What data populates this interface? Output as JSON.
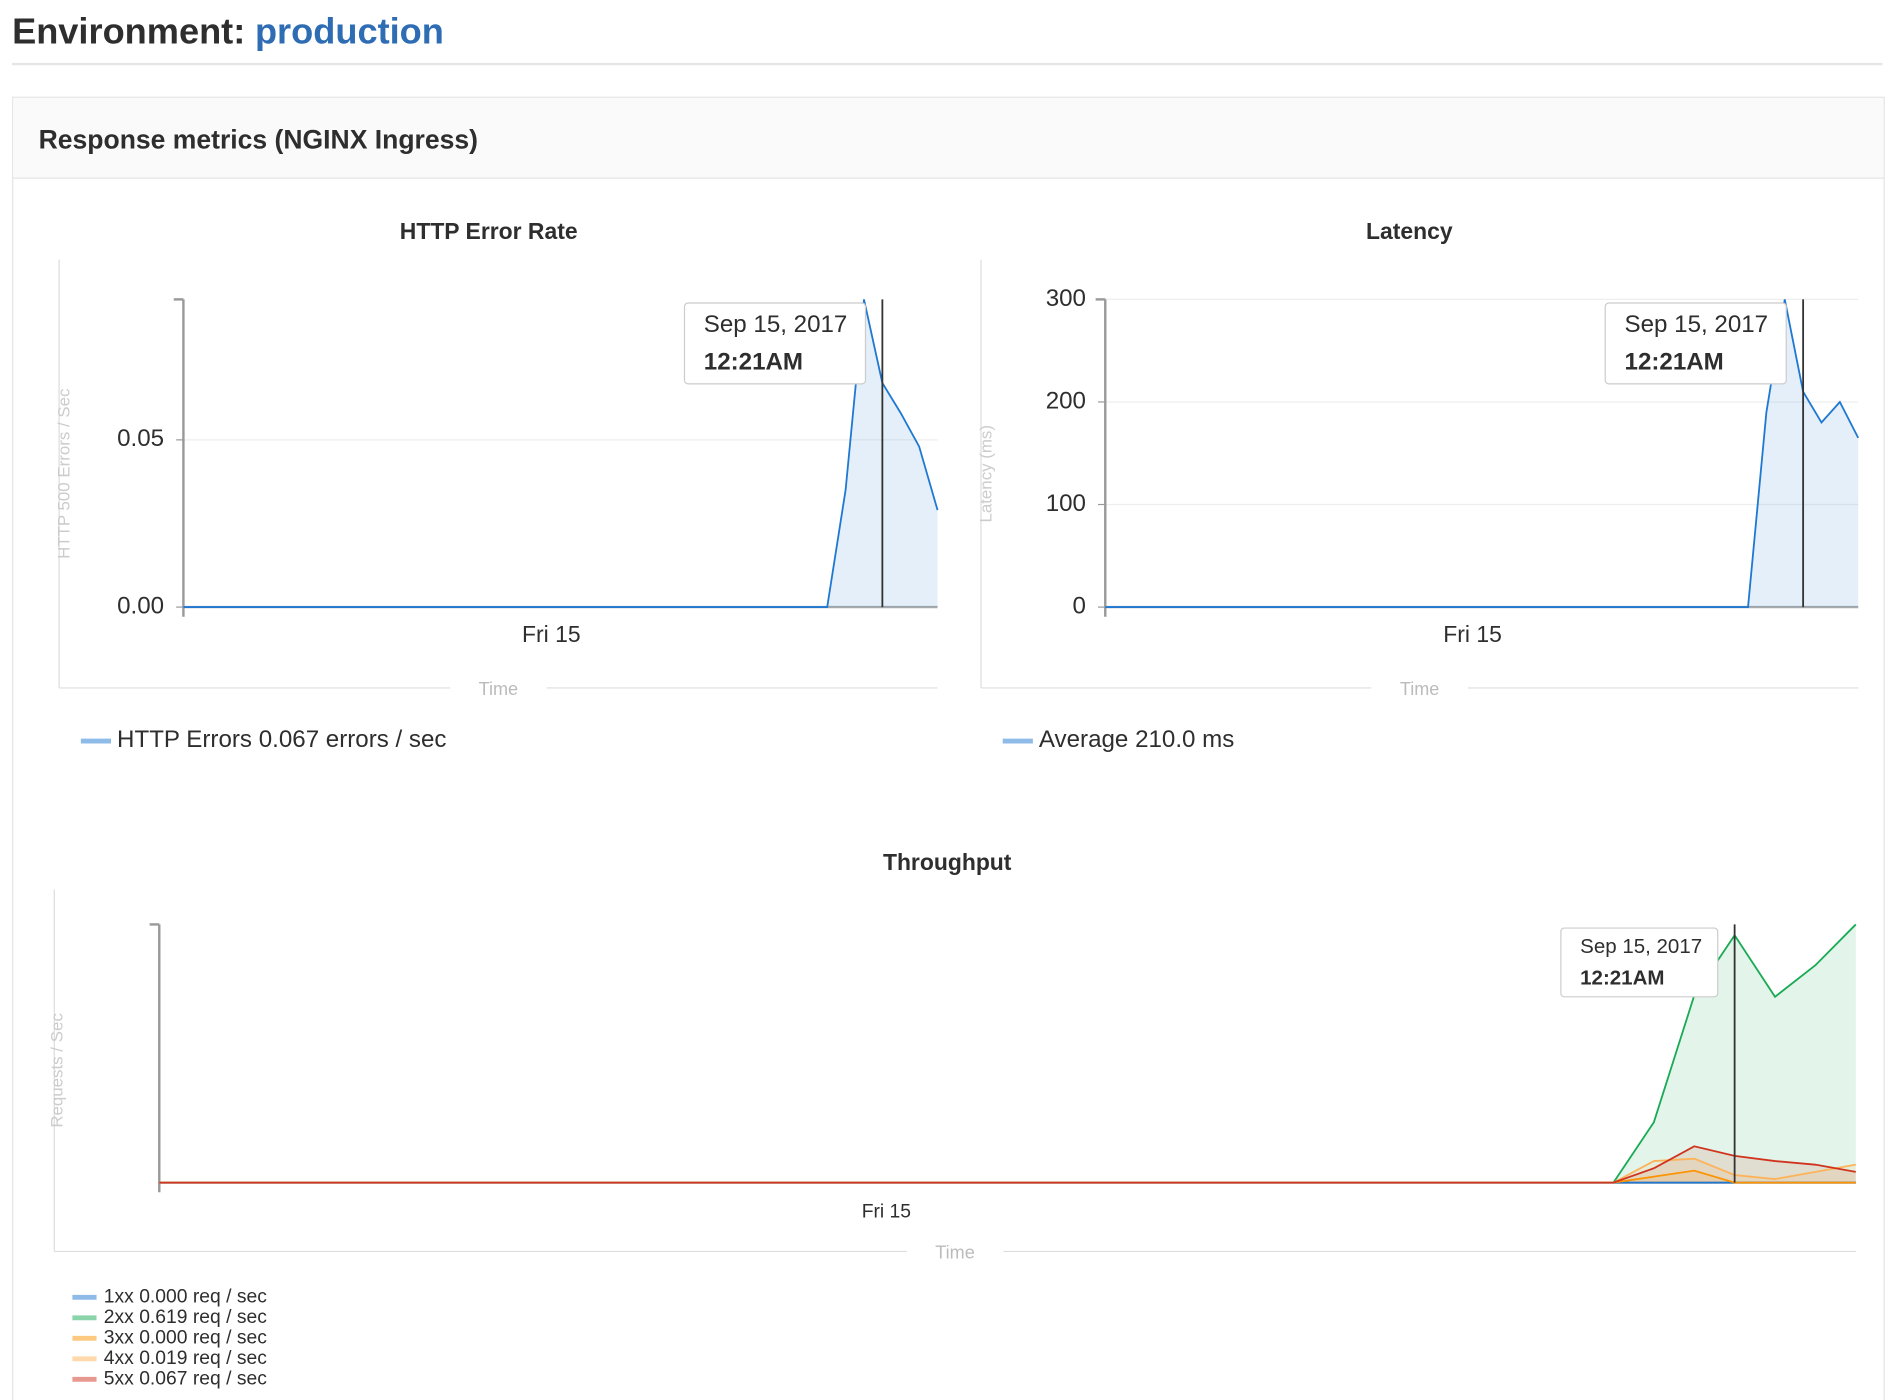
{
  "header": {
    "label": "Environment:",
    "environment": "production"
  },
  "panel": {
    "title": "Response metrics (NGINX Ingress)"
  },
  "chart_data": [
    {
      "type": "area",
      "title": "HTTP Error Rate",
      "y_label": "HTTP 500 Errors / Sec",
      "x_label": "Time",
      "categories": [
        null,
        null,
        null,
        null,
        null,
        null,
        null,
        null,
        null,
        null,
        null,
        null,
        null,
        null,
        null,
        null,
        null,
        null,
        null,
        null,
        "Fri 15",
        null,
        null,
        null,
        null,
        null,
        null,
        null,
        null,
        null,
        null,
        null,
        null,
        null,
        null,
        null,
        null,
        null,
        null,
        null,
        null,
        null
      ],
      "series": [
        {
          "name": "HTTP Errors",
          "legend_value": "0.067 errors / sec",
          "color": "#1f78d1",
          "values": [
            0,
            0,
            0,
            0,
            0,
            0,
            0,
            0,
            0,
            0,
            0,
            0,
            0,
            0,
            0,
            0,
            0,
            0,
            0,
            0,
            0,
            0,
            0,
            0,
            0,
            0,
            0,
            0,
            0,
            0,
            0,
            0,
            0,
            0,
            0,
            0,
            0.035,
            0.092,
            0.067,
            0.058,
            0.048,
            0.029
          ]
        }
      ],
      "ylim": [
        0,
        0.092
      ],
      "yticks": [
        {
          "value": 0,
          "label": "0.00"
        },
        {
          "value": 0.05,
          "label": "0.05"
        }
      ],
      "grid": true,
      "tooltip": {
        "date": "Sep 15, 2017",
        "time": "12:21AM"
      }
    },
    {
      "type": "area",
      "title": "Latency",
      "y_label": "Latency (ms)",
      "x_label": "Time",
      "categories": [
        null,
        null,
        null,
        null,
        null,
        null,
        null,
        null,
        null,
        null,
        null,
        null,
        null,
        null,
        null,
        null,
        null,
        null,
        null,
        null,
        "Fri 15",
        null,
        null,
        null,
        null,
        null,
        null,
        null,
        null,
        null,
        null,
        null,
        null,
        null,
        null,
        null,
        null,
        null,
        null,
        null,
        null,
        null
      ],
      "series": [
        {
          "name": "Average",
          "legend_value": "210.0 ms",
          "color": "#1f78d1",
          "values": [
            0,
            0,
            0,
            0,
            0,
            0,
            0,
            0,
            0,
            0,
            0,
            0,
            0,
            0,
            0,
            0,
            0,
            0,
            0,
            0,
            0,
            0,
            0,
            0,
            0,
            0,
            0,
            0,
            0,
            0,
            0,
            0,
            0,
            0,
            0,
            0,
            190,
            300,
            210,
            180,
            200,
            165
          ]
        }
      ],
      "ylim": [
        0,
        300
      ],
      "yticks": [
        0,
        100,
        200,
        300
      ],
      "grid": true,
      "tooltip": {
        "date": "Sep 15, 2017",
        "time": "12:21AM"
      }
    },
    {
      "type": "area",
      "title": "Throughput",
      "y_label": "Requests / Sec",
      "x_label": "Time",
      "categories": [
        null,
        null,
        null,
        null,
        null,
        null,
        null,
        null,
        null,
        null,
        null,
        null,
        null,
        null,
        null,
        null,
        null,
        null,
        "Fri 15",
        null,
        null,
        null,
        null,
        null,
        null,
        null,
        null,
        null,
        null,
        null,
        null,
        null,
        null,
        null,
        null,
        null,
        null,
        null,
        null,
        null,
        null,
        null,
        null
      ],
      "series": [
        {
          "name": "1xx",
          "legend_value": "0.000 req / sec",
          "color": "#1f78d1",
          "values": [
            0,
            0,
            0,
            0,
            0,
            0,
            0,
            0,
            0,
            0,
            0,
            0,
            0,
            0,
            0,
            0,
            0,
            0,
            0,
            0,
            0,
            0,
            0,
            0,
            0,
            0,
            0,
            0,
            0,
            0,
            0,
            0,
            0,
            0,
            0,
            0,
            0,
            0,
            0,
            0,
            0,
            0,
            0
          ]
        },
        {
          "name": "2xx",
          "legend_value": "0.619 req / sec",
          "color": "#1aaa55",
          "values": [
            0,
            0,
            0,
            0,
            0,
            0,
            0,
            0,
            0,
            0,
            0,
            0,
            0,
            0,
            0,
            0,
            0,
            0,
            0,
            0,
            0,
            0,
            0,
            0,
            0,
            0,
            0,
            0,
            0,
            0,
            0,
            0,
            0,
            0,
            0,
            0,
            0,
            0.151,
            0.468,
            0.619,
            0.465,
            0.544,
            0.646
          ]
        },
        {
          "name": "3xx",
          "legend_value": "0.000 req / sec",
          "color": "#fc9403",
          "values": [
            0,
            0,
            0,
            0,
            0,
            0,
            0,
            0,
            0,
            0,
            0,
            0,
            0,
            0,
            0,
            0,
            0,
            0,
            0,
            0,
            0,
            0,
            0,
            0,
            0,
            0,
            0,
            0,
            0,
            0,
            0,
            0,
            0,
            0,
            0,
            0,
            0,
            0.015,
            0.03,
            0,
            0,
            0,
            0
          ]
        },
        {
          "name": "4xx",
          "legend_value": "0.019 req / sec",
          "color": "#fdb35a",
          "values": [
            0,
            0,
            0,
            0,
            0,
            0,
            0,
            0,
            0,
            0,
            0,
            0,
            0,
            0,
            0,
            0,
            0,
            0,
            0,
            0,
            0,
            0,
            0,
            0,
            0,
            0,
            0,
            0,
            0,
            0,
            0,
            0,
            0,
            0,
            0,
            0,
            0,
            0.054,
            0.06,
            0.019,
            0.009,
            0.027,
            0.045
          ]
        },
        {
          "name": "5xx",
          "legend_value": "0.067 req / sec",
          "color": "#d0341f",
          "values": [
            0,
            0,
            0,
            0,
            0,
            0,
            0,
            0,
            0,
            0,
            0,
            0,
            0,
            0,
            0,
            0,
            0,
            0,
            0,
            0,
            0,
            0,
            0,
            0,
            0,
            0,
            0,
            0,
            0,
            0,
            0,
            0,
            0,
            0,
            0,
            0,
            0,
            0.036,
            0.091,
            0.067,
            0.054,
            0.045,
            0.027
          ]
        }
      ],
      "ylim": [
        0,
        0.646
      ],
      "grid": false,
      "tooltip": {
        "date": "Sep 15, 2017",
        "time": "12:21AM"
      }
    }
  ]
}
